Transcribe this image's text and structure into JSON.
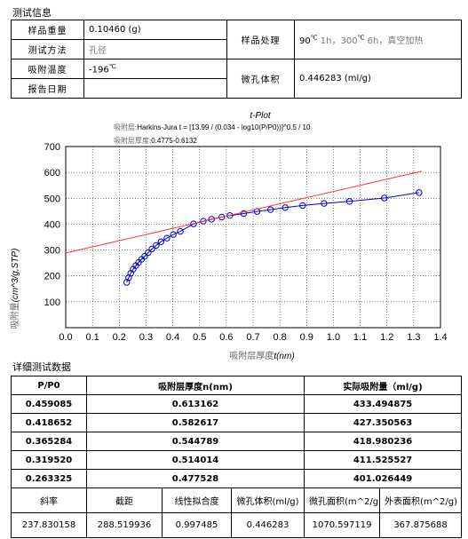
{
  "info": {
    "title": "测试信息",
    "sample_weight_label": "样品重量",
    "sample_weight_value": "0.10460 (g)",
    "method_label": "测试方法",
    "method_value": "孔径",
    "temp_label": "吸附温度",
    "temp_value": "-196",
    "temp_unit": "℃",
    "report_date_label": "报告日期",
    "report_date_value": "",
    "treatment_label": "样品处理",
    "treatment_value_1": "90",
    "treatment_unit_1": "℃",
    "treatment_value_2": " 1h，300",
    "treatment_unit_2": "℃",
    "treatment_value_3": " 6h，真空加热",
    "micro_volume_label": "微孔体积",
    "micro_volume_value": "0.446283 (ml/g)"
  },
  "chart_data": {
    "type": "scatter",
    "title": "t-Plot",
    "subtitle_1_label": "吸附层:",
    "subtitle_1_formula": "Harkins-Jura t = [13.99 / (0.034 - log10(P/P0))]^0.5 / 10",
    "subtitle_2_label": "吸附层厚度:",
    "subtitle_2_value": "0.4775-0.6132",
    "xlabel_zh": "吸附层厚度",
    "xlabel_unit": "t(nm)",
    "ylabel_zh": "吸附量",
    "ylabel_unit": "(cm^3/g,STP)",
    "xlim": [
      0.0,
      1.4
    ],
    "ylim": [
      0,
      700
    ],
    "xticks": [
      "0.0",
      "0.1",
      "0.2",
      "0.3",
      "0.4",
      "0.5",
      "0.6",
      "0.7",
      "0.8",
      "0.9",
      "1.0",
      "1.1",
      "1.2",
      "1.3",
      "1.4"
    ],
    "yticks": [
      "100",
      "200",
      "300",
      "400",
      "500",
      "600",
      "700"
    ],
    "grid": true,
    "series": [
      {
        "color": "#0000cc",
        "x": [
          0.228,
          0.235,
          0.243,
          0.252,
          0.262,
          0.272,
          0.283,
          0.295,
          0.308,
          0.322,
          0.338,
          0.356,
          0.378,
          0.402,
          0.428,
          0.4775,
          0.514,
          0.5448,
          0.5826,
          0.6132,
          0.665,
          0.715,
          0.765,
          0.82,
          0.885,
          0.965,
          1.06,
          1.19,
          1.32
        ],
        "y": [
          175,
          193,
          210,
          226,
          240,
          252,
          264,
          276,
          290,
          304,
          318,
          332,
          346,
          360,
          372,
          401.026,
          411.526,
          418.98,
          427.351,
          433.495,
          441,
          449,
          456,
          464,
          472,
          480,
          488,
          501,
          522
        ]
      },
      {
        "color": "#ff3333",
        "x": [
          0.0,
          1.33
        ],
        "y": [
          288.52,
          604.82
        ]
      }
    ]
  },
  "detail": {
    "title": "详细测试数据",
    "col_pp0": "P/P0",
    "col_thickness": "吸附层厚度n(nm)",
    "col_adsorbed": "实际吸附量（ml/g)",
    "rows": [
      {
        "pp0": "0.459085",
        "t": "0.613162",
        "v": "433.494875"
      },
      {
        "pp0": "0.418652",
        "t": "0.582617",
        "v": "427.350563"
      },
      {
        "pp0": "0.365284",
        "t": "0.544789",
        "v": "418.980236"
      },
      {
        "pp0": "0.319520",
        "t": "0.514014",
        "v": "411.525527"
      },
      {
        "pp0": "0.263325",
        "t": "0.477528",
        "v": "401.026449"
      }
    ],
    "summary_labels": [
      "斜率",
      "截距",
      "线性拟合度",
      "微孔体积(ml/g)",
      "微孔面积(m^2/g)",
      "外表面积(m^2/g)"
    ],
    "summary_values": [
      "237.830158",
      "288.519936",
      "0.997485",
      "0.446283",
      "1070.597119",
      "367.875688"
    ]
  }
}
